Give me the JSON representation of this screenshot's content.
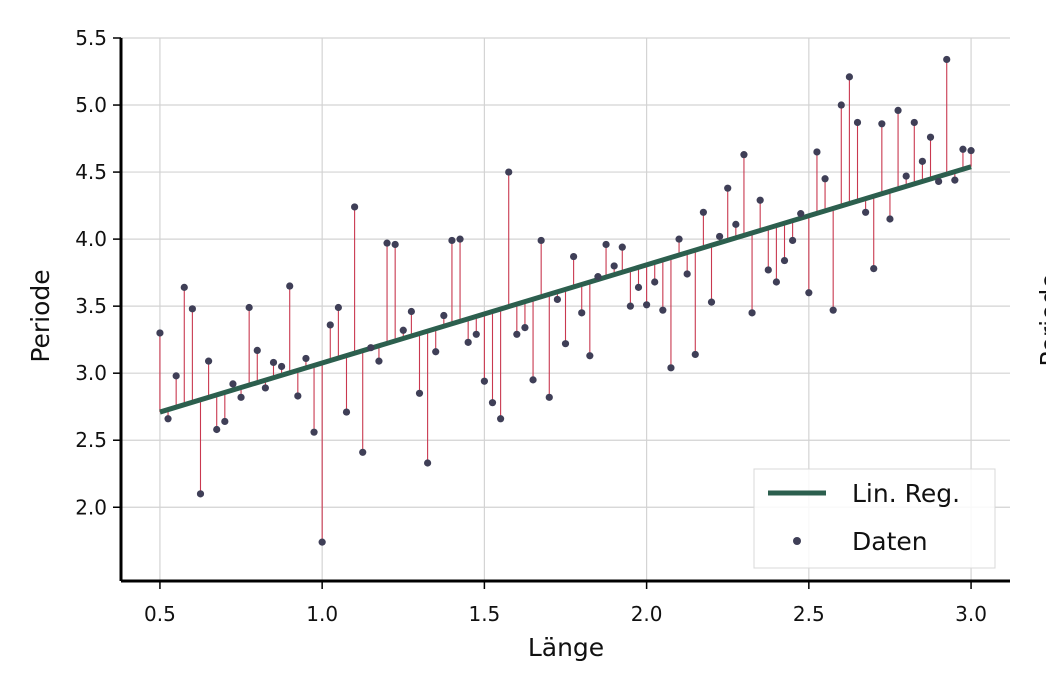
{
  "chart_data": {
    "type": "scatter",
    "xlabel": "Länge",
    "ylabel": "Periode",
    "right_cut_ylabel": "Periode",
    "xlim": [
      0.38,
      3.12
    ],
    "ylim": [
      1.45,
      5.5
    ],
    "x_ticks": [
      "0.5",
      "1.0",
      "1.5",
      "2.0",
      "2.5",
      "3.0"
    ],
    "y_ticks": [
      "2.0",
      "2.5",
      "3.0",
      "3.5",
      "4.0",
      "4.5",
      "5.0",
      "5.5"
    ],
    "grid": true,
    "legend_position": "lower-right",
    "regression": {
      "name": "Lin. Reg.",
      "color": "#2c5f4e",
      "start": {
        "x": 0.5,
        "y": 2.71
      },
      "end": {
        "x": 3.0,
        "y": 4.54
      }
    },
    "series": [
      {
        "name": "Daten",
        "color": "#3f3f57",
        "residual_color": "#c9384f",
        "x": [
          0.5,
          0.525,
          0.55,
          0.575,
          0.6,
          0.625,
          0.65,
          0.675,
          0.7,
          0.725,
          0.75,
          0.775,
          0.8,
          0.825,
          0.85,
          0.875,
          0.9,
          0.925,
          0.95,
          0.975,
          1.0,
          1.025,
          1.05,
          1.075,
          1.1,
          1.125,
          1.15,
          1.175,
          1.2,
          1.225,
          1.25,
          1.275,
          1.3,
          1.325,
          1.35,
          1.375,
          1.4,
          1.425,
          1.45,
          1.475,
          1.5,
          1.525,
          1.55,
          1.575,
          1.6,
          1.625,
          1.65,
          1.675,
          1.7,
          1.725,
          1.75,
          1.775,
          1.8,
          1.825,
          1.85,
          1.875,
          1.9,
          1.925,
          1.95,
          1.975,
          2.0,
          2.025,
          2.05,
          2.075,
          2.1,
          2.125,
          2.15,
          2.175,
          2.2,
          2.225,
          2.25,
          2.275,
          2.3,
          2.325,
          2.35,
          2.375,
          2.4,
          2.425,
          2.45,
          2.475,
          2.5,
          2.525,
          2.55,
          2.575,
          2.6,
          2.625,
          2.65,
          2.675,
          2.7,
          2.725,
          2.75,
          2.775,
          2.8,
          2.825,
          2.85,
          2.875,
          2.9,
          2.925,
          2.95,
          2.975,
          3.0
        ],
        "values": [
          3.3,
          2.66,
          2.98,
          3.64,
          3.48,
          2.1,
          3.09,
          2.58,
          2.64,
          2.92,
          2.82,
          3.49,
          3.17,
          2.89,
          3.08,
          3.05,
          3.65,
          2.83,
          3.11,
          2.56,
          1.74,
          3.36,
          3.49,
          2.71,
          4.24,
          2.41,
          3.19,
          3.09,
          3.97,
          3.96,
          3.32,
          3.46,
          2.85,
          2.33,
          3.16,
          3.43,
          3.99,
          4.0,
          3.23,
          3.29,
          2.94,
          2.78,
          2.66,
          4.5,
          3.29,
          3.34,
          2.95,
          3.99,
          2.82,
          3.55,
          3.22,
          3.87,
          3.45,
          3.13,
          3.72,
          3.96,
          3.8,
          3.94,
          3.5,
          3.64,
          3.51,
          3.68,
          3.47,
          3.04,
          4.0,
          3.74,
          3.14,
          4.2,
          3.53,
          4.02,
          4.38,
          4.11,
          4.63,
          3.45,
          4.29,
          3.77,
          3.68,
          3.84,
          3.99,
          4.19,
          3.6,
          4.65,
          4.45,
          3.47,
          5.0,
          5.21,
          4.87,
          4.2,
          3.78,
          4.86,
          4.15,
          4.96,
          4.47,
          4.87,
          4.58,
          4.76,
          4.43,
          5.34,
          4.44,
          4.67,
          4.66
        ]
      }
    ]
  }
}
